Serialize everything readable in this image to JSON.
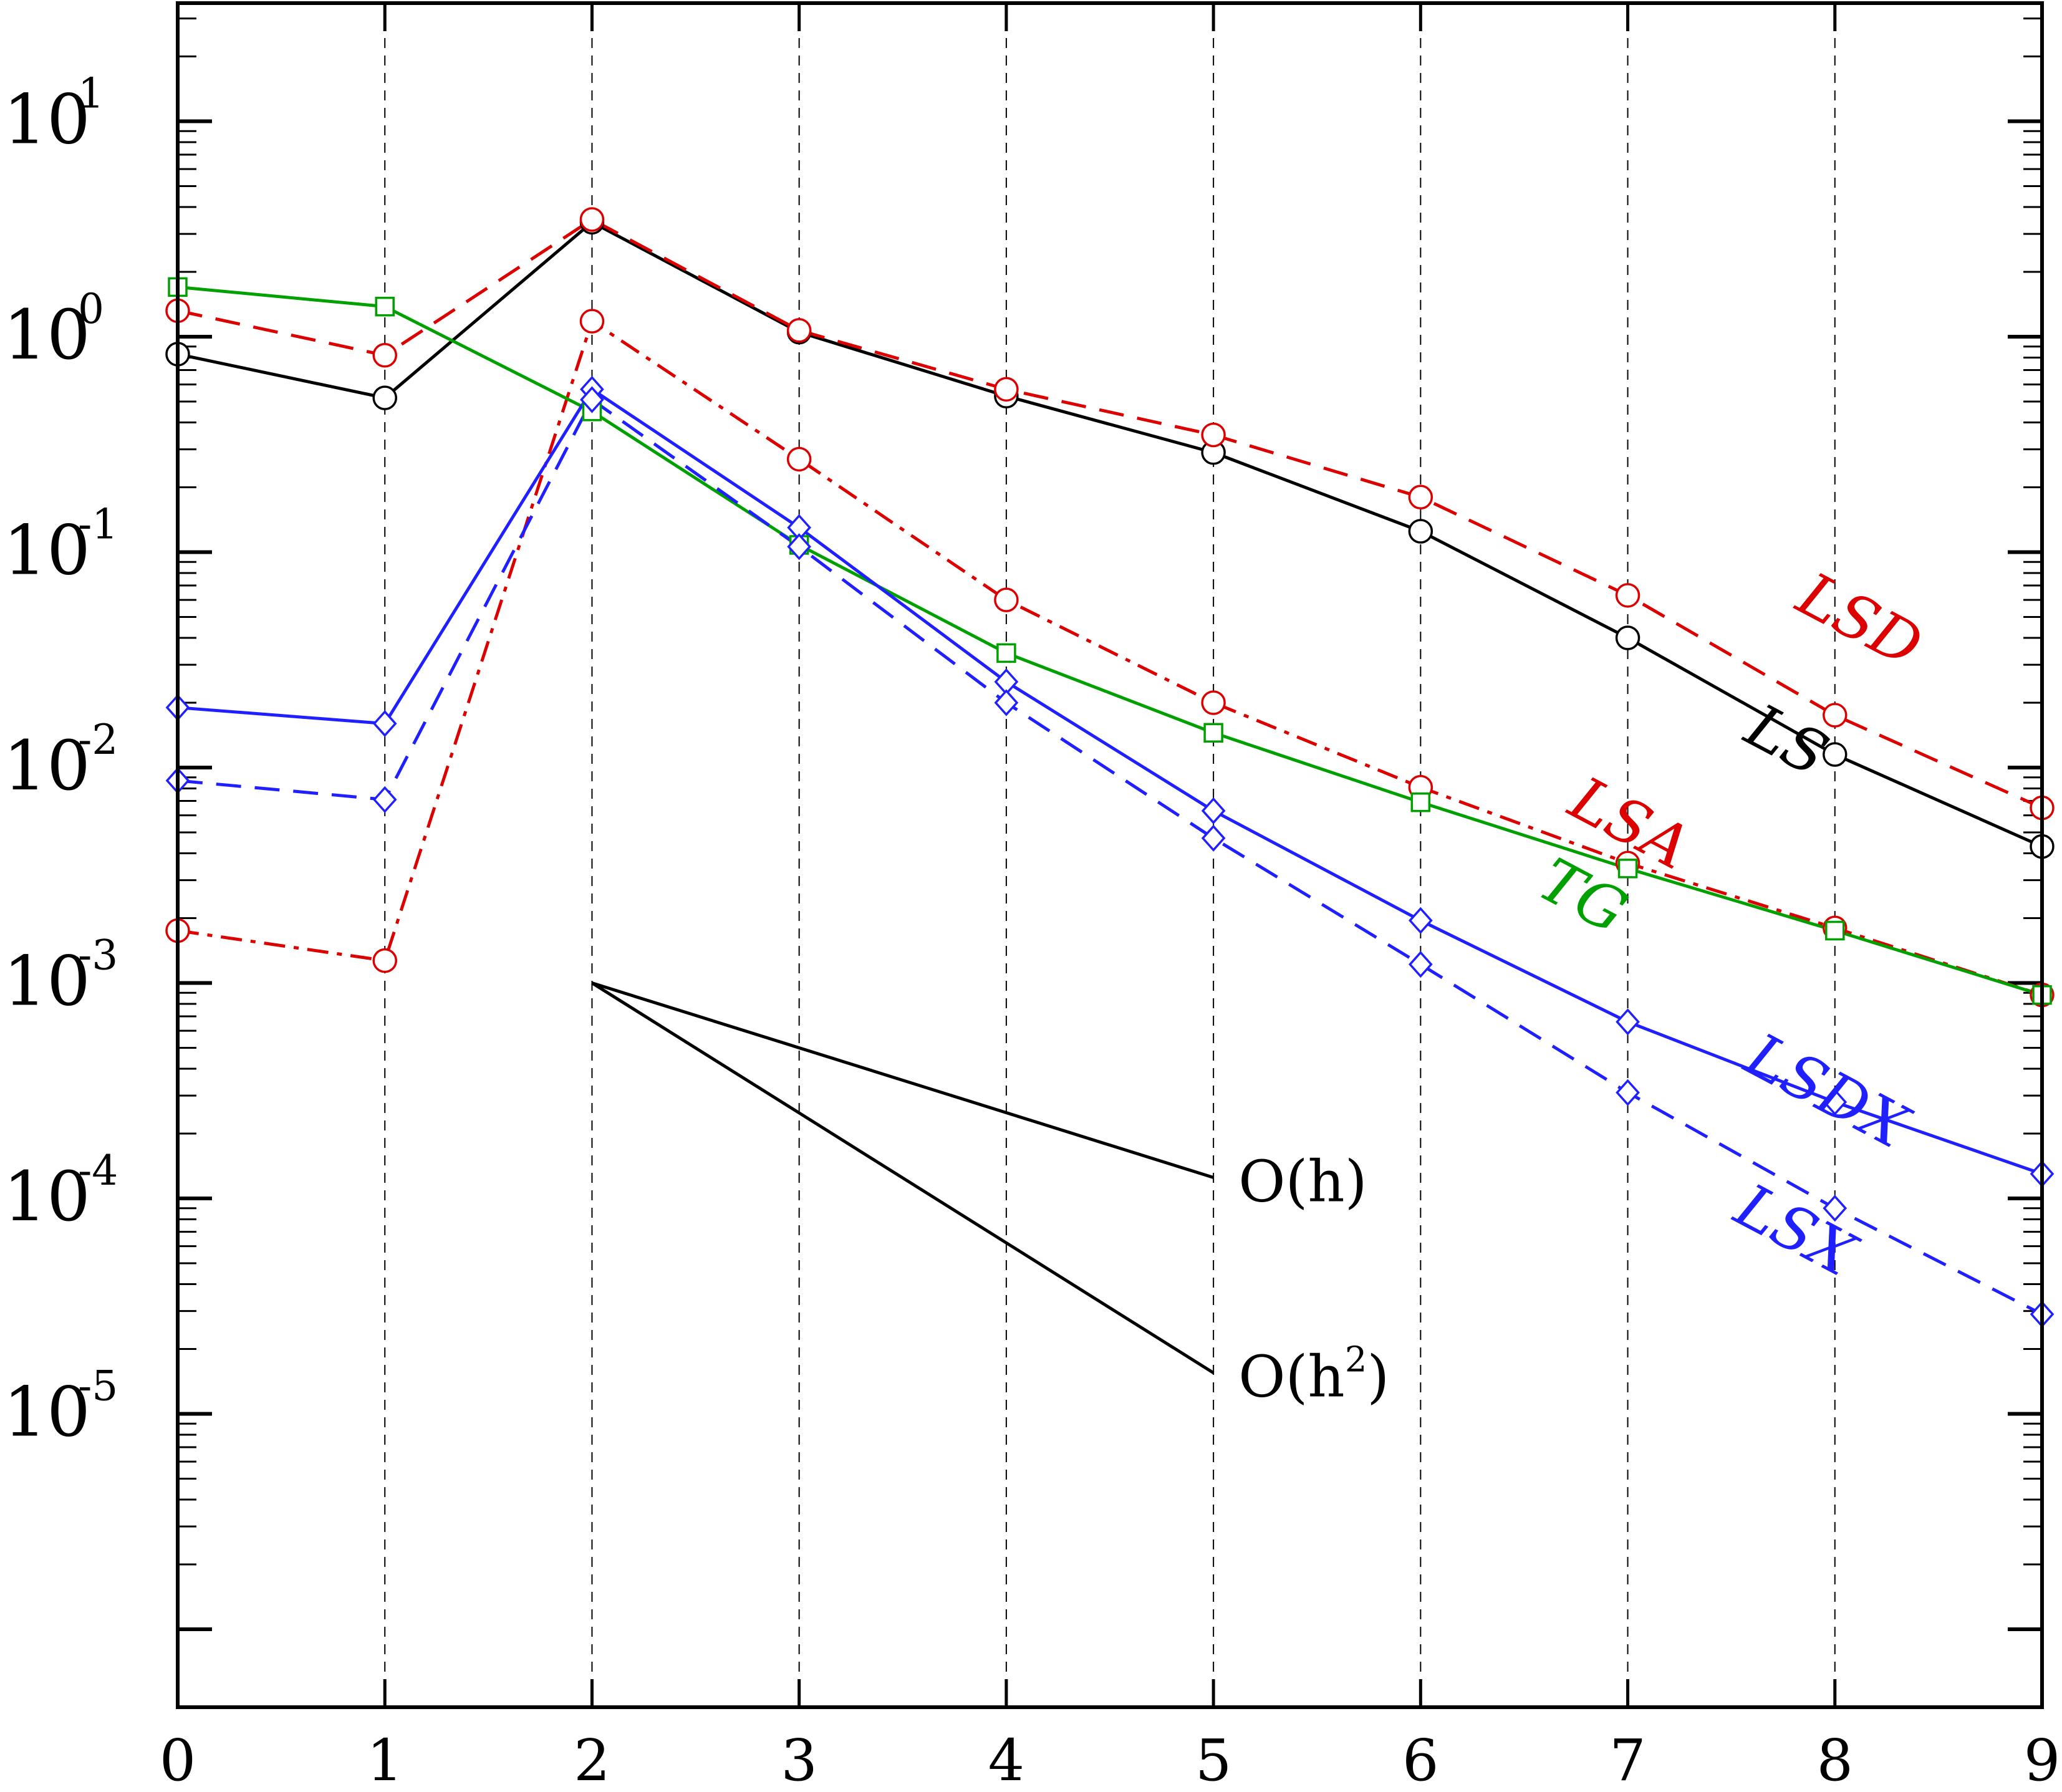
{
  "chart_data": {
    "type": "line",
    "title": "",
    "xlabel": "",
    "ylabel": "",
    "xlim": [
      0,
      9
    ],
    "ylim": [
      5e-06,
      20
    ],
    "yscale": "log",
    "grid": "vertical dashed lines at integer x",
    "x": [
      0,
      1,
      2,
      3,
      4,
      5,
      6,
      7,
      8,
      9
    ],
    "x_tick_labels": [
      "0",
      "1",
      "2",
      "3",
      "4",
      "5",
      "6",
      "7",
      "8",
      "9"
    ],
    "y_ticks": [
      {
        "value": 10,
        "base": "10",
        "exp": "1"
      },
      {
        "value": 1,
        "base": "10",
        "exp": "0"
      },
      {
        "value": 0.1,
        "base": "10",
        "exp": "-1"
      },
      {
        "value": 0.01,
        "base": "10",
        "exp": "-2"
      },
      {
        "value": 0.001,
        "base": "10",
        "exp": "-3"
      },
      {
        "value": 0.0001,
        "base": "10",
        "exp": "-4"
      },
      {
        "value": 1e-05,
        "base": "10",
        "exp": "-5"
      }
    ],
    "series": [
      {
        "name": "LS",
        "color": "#000000",
        "dash": "solid",
        "marker": "circle",
        "values": [
          0.83,
          0.52,
          3.4,
          1.05,
          0.53,
          0.29,
          0.125,
          0.04,
          0.0115,
          0.0043
        ],
        "label_pos": {
          "x": 7.55,
          "y": 0.0135
        }
      },
      {
        "name": "LSD",
        "color": "#dd0000",
        "dash": "dashed",
        "marker": "circle",
        "values": [
          1.32,
          0.82,
          3.5,
          1.07,
          0.57,
          0.35,
          0.18,
          0.063,
          0.0175,
          0.0065
        ],
        "label_pos": {
          "x": 7.8,
          "y": 0.055
        }
      },
      {
        "name": "LSA",
        "color": "#dd0000",
        "dash": "dashdot",
        "marker": "circle",
        "values": [
          0.00175,
          0.00127,
          1.18,
          0.27,
          0.06,
          0.02,
          0.0081,
          0.0036,
          0.0018,
          0.00088
        ],
        "label_pos": {
          "x": 6.7,
          "y": 0.0062
        }
      },
      {
        "name": "TG",
        "color": "#00a000",
        "dash": "solid",
        "marker": "square",
        "values": [
          1.7,
          1.38,
          0.45,
          0.108,
          0.034,
          0.0145,
          0.0069,
          0.0034,
          0.00175,
          0.00088
        ],
        "label_pos": {
          "x": 6.55,
          "y": 0.0026
        }
      },
      {
        "name": "LSDX",
        "color": "#2020ff",
        "dash": "solid",
        "marker": "diamond",
        "values": [
          0.019,
          0.016,
          0.57,
          0.13,
          0.025,
          0.0063,
          0.00195,
          0.00066,
          0.00028,
          0.00013
        ],
        "label_pos": {
          "x": 7.55,
          "y": 0.0004
        }
      },
      {
        "name": "LSX",
        "color": "#2020ff",
        "dash": "dashed",
        "marker": "diamond",
        "values": [
          0.0087,
          0.0071,
          0.51,
          0.106,
          0.02,
          0.0047,
          0.00122,
          0.00031,
          9e-05,
          2.9e-05
        ],
        "label_pos": {
          "x": 7.5,
          "y": 8e-05
        }
      }
    ],
    "reference_lines": [
      {
        "name": "O(h)",
        "base": "O(h",
        "sup": "",
        "tail": ")",
        "from": [
          2,
          0.001
        ],
        "to": [
          5,
          0.000125
        ]
      },
      {
        "name": "O(h2)",
        "base": "O(h",
        "sup": "2",
        "tail": ")",
        "from": [
          2,
          0.001
        ],
        "to": [
          5,
          1.55e-05
        ]
      }
    ]
  }
}
